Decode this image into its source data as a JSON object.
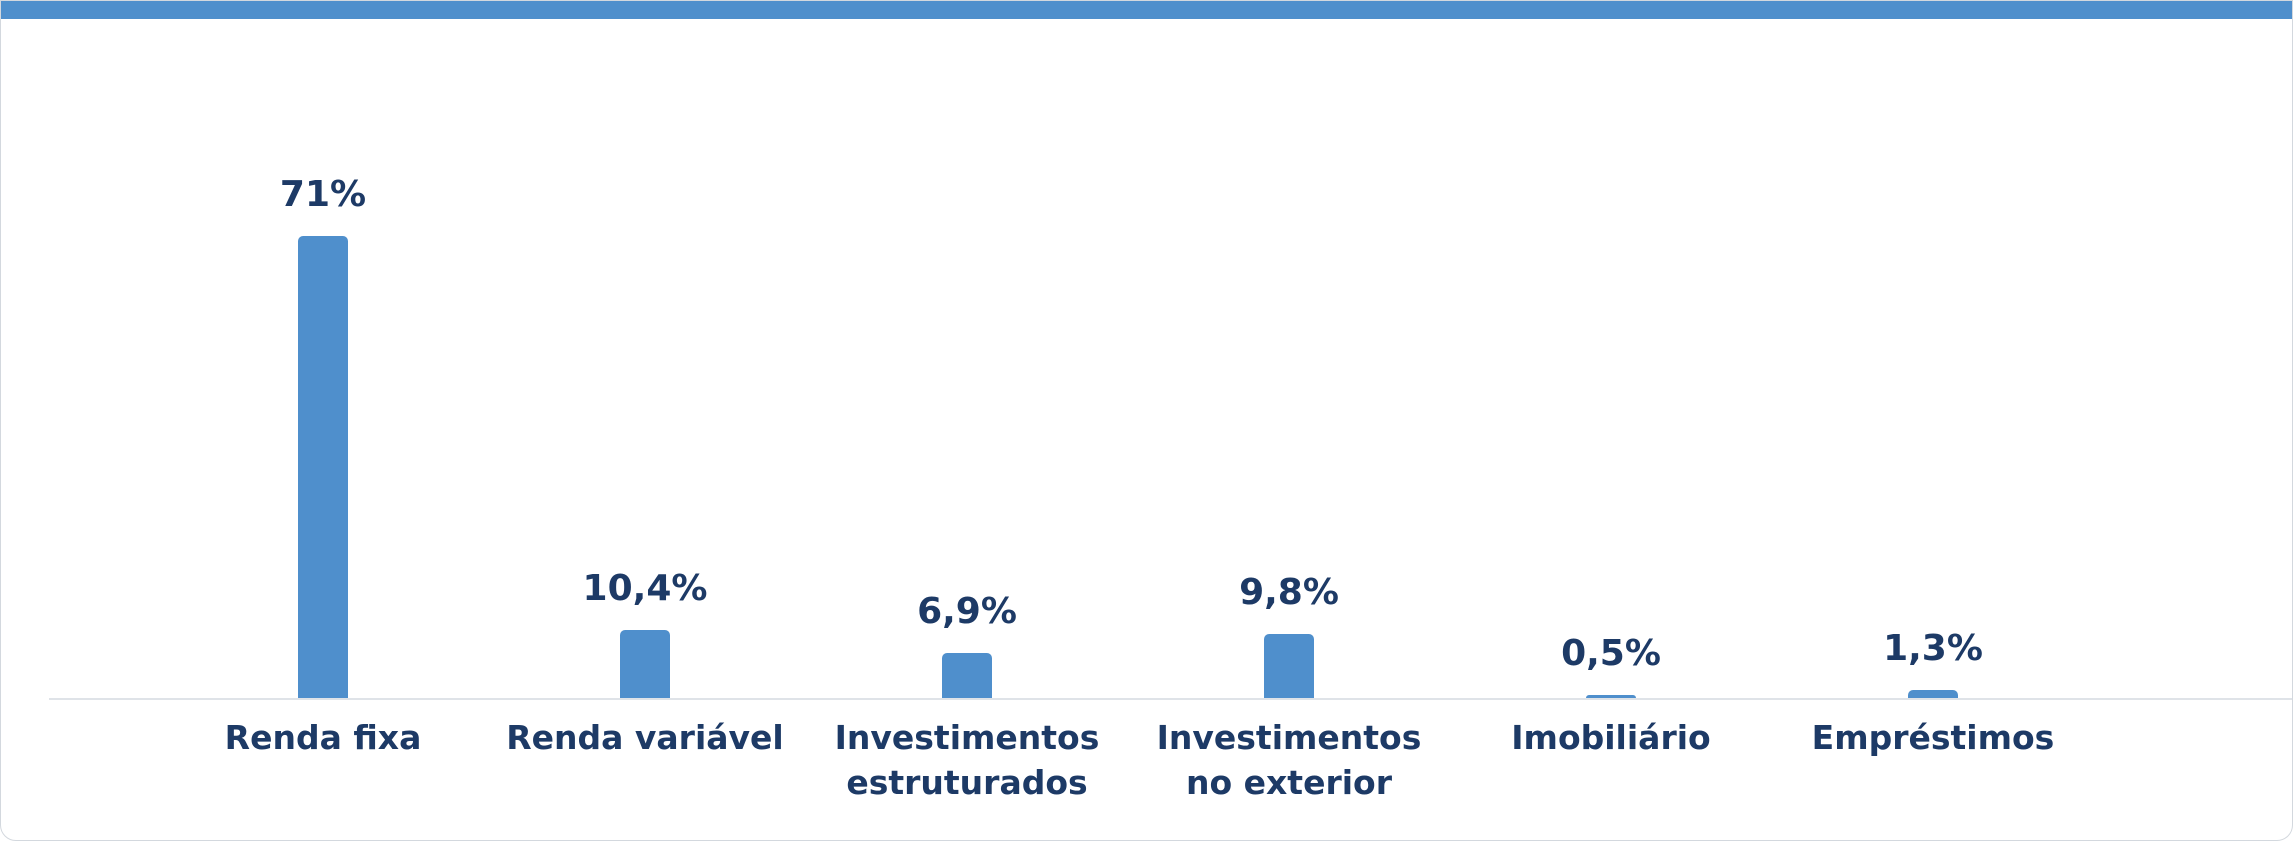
{
  "chart_data": {
    "type": "bar",
    "categories": [
      "Renda fixa",
      "Renda variável",
      "Investimentos estruturados",
      "Investimentos no exterior",
      "Imobiliário",
      "Empréstimos"
    ],
    "values": [
      71,
      10.4,
      6.9,
      9.8,
      0.5,
      1.3
    ],
    "value_labels": [
      "71%",
      "10,4%",
      "6,9%",
      "9,8%",
      "0,5%",
      "1,3%"
    ],
    "color": "#4f8fcc"
  }
}
